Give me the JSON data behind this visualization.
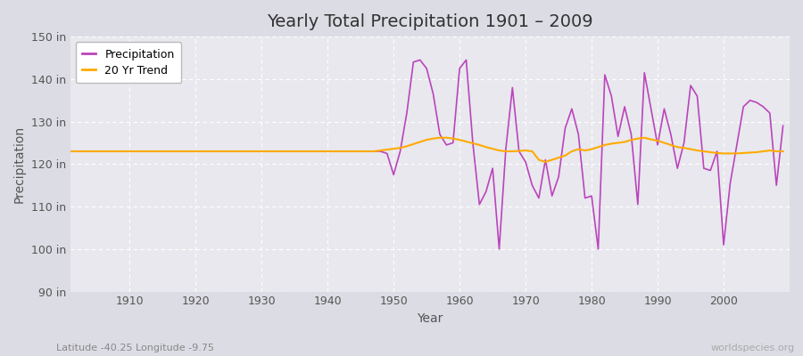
{
  "title": "Yearly Total Precipitation 1901 – 2009",
  "xlabel": "Year",
  "ylabel": "Precipitation",
  "subtitle": "Latitude -40.25 Longitude -9.75",
  "watermark": "worldspecies.org",
  "bg_color": "#dcdce4",
  "plot_bg_color": "#e8e8ee",
  "grid_color": "#ffffff",
  "precip_color": "#bb44bb",
  "trend_color": "#ffaa00",
  "ylim": [
    90,
    150
  ],
  "yticks": [
    90,
    100,
    110,
    120,
    130,
    140,
    150
  ],
  "xlim": [
    1901,
    2010
  ],
  "xticks": [
    1910,
    1920,
    1930,
    1940,
    1950,
    1960,
    1970,
    1980,
    1990,
    2000
  ],
  "years": [
    1901,
    1902,
    1903,
    1904,
    1905,
    1906,
    1907,
    1908,
    1909,
    1910,
    1911,
    1912,
    1913,
    1914,
    1915,
    1916,
    1917,
    1918,
    1919,
    1920,
    1921,
    1922,
    1923,
    1924,
    1925,
    1926,
    1927,
    1928,
    1929,
    1930,
    1931,
    1932,
    1933,
    1934,
    1935,
    1936,
    1937,
    1938,
    1939,
    1940,
    1941,
    1942,
    1943,
    1944,
    1945,
    1946,
    1947,
    1948,
    1949,
    1950,
    1951,
    1952,
    1953,
    1954,
    1955,
    1956,
    1957,
    1958,
    1959,
    1960,
    1961,
    1962,
    1963,
    1964,
    1965,
    1966,
    1967,
    1968,
    1969,
    1970,
    1971,
    1972,
    1973,
    1974,
    1975,
    1976,
    1977,
    1978,
    1979,
    1980,
    1981,
    1982,
    1983,
    1984,
    1985,
    1986,
    1987,
    1988,
    1989,
    1990,
    1991,
    1992,
    1993,
    1994,
    1995,
    1996,
    1997,
    1998,
    1999,
    2000,
    2001,
    2002,
    2003,
    2004,
    2005,
    2006,
    2007,
    2008,
    2009
  ],
  "precip": [
    123.0,
    123.0,
    123.0,
    123.0,
    123.0,
    123.0,
    123.0,
    123.0,
    123.0,
    123.0,
    123.0,
    123.0,
    123.0,
    123.0,
    123.0,
    123.0,
    123.0,
    123.0,
    123.0,
    123.0,
    123.0,
    123.0,
    123.0,
    123.0,
    123.0,
    123.0,
    123.0,
    123.0,
    123.0,
    123.0,
    123.0,
    123.0,
    123.0,
    123.0,
    123.0,
    123.0,
    123.0,
    123.0,
    123.0,
    123.0,
    123.0,
    123.0,
    123.0,
    123.0,
    123.0,
    123.0,
    123.0,
    123.0,
    122.5,
    117.5,
    123.0,
    132.0,
    144.0,
    144.5,
    142.5,
    136.5,
    127.0,
    124.5,
    125.0,
    142.5,
    144.5,
    125.0,
    110.5,
    113.5,
    119.0,
    100.0,
    123.5,
    138.0,
    123.0,
    120.5,
    115.0,
    112.0,
    121.0,
    112.5,
    117.0,
    128.5,
    133.0,
    127.0,
    112.0,
    112.5,
    100.0,
    141.0,
    136.0,
    126.5,
    133.5,
    127.0,
    110.5,
    141.5,
    133.0,
    124.5,
    133.0,
    127.0,
    119.0,
    125.0,
    138.5,
    136.0,
    119.0,
    118.5,
    123.0,
    101.0,
    115.5,
    124.5,
    133.5,
    135.0,
    134.5,
    133.5,
    132.0,
    115.0,
    129.0
  ],
  "trend": [
    123.0,
    123.0,
    123.0,
    123.0,
    123.0,
    123.0,
    123.0,
    123.0,
    123.0,
    123.0,
    123.0,
    123.0,
    123.0,
    123.0,
    123.0,
    123.0,
    123.0,
    123.0,
    123.0,
    123.0,
    123.0,
    123.0,
    123.0,
    123.0,
    123.0,
    123.0,
    123.0,
    123.0,
    123.0,
    123.0,
    123.0,
    123.0,
    123.0,
    123.0,
    123.0,
    123.0,
    123.0,
    123.0,
    123.0,
    123.0,
    123.0,
    123.0,
    123.0,
    123.0,
    123.0,
    123.0,
    123.0,
    123.2,
    123.4,
    123.6,
    123.8,
    124.2,
    124.7,
    125.2,
    125.7,
    126.0,
    126.2,
    126.2,
    126.0,
    125.7,
    125.3,
    124.9,
    124.5,
    124.0,
    123.6,
    123.2,
    123.0,
    123.0,
    123.1,
    123.2,
    123.0,
    121.0,
    120.5,
    121.0,
    121.5,
    122.0,
    123.0,
    123.5,
    123.2,
    123.5,
    124.0,
    124.5,
    124.8,
    125.0,
    125.2,
    125.7,
    126.0,
    126.2,
    125.8,
    125.5,
    125.0,
    124.5,
    124.0,
    123.8,
    123.5,
    123.2,
    123.0,
    122.8,
    122.6,
    122.5,
    122.5,
    122.5,
    122.6,
    122.7,
    122.8,
    123.0,
    123.2,
    123.0,
    123.0
  ]
}
